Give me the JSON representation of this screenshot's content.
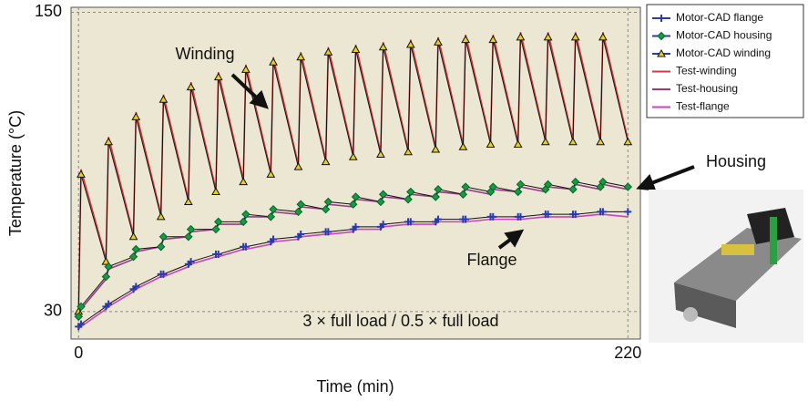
{
  "chart_data": {
    "type": "line",
    "x": [
      0,
      1,
      11,
      12,
      22,
      23,
      33,
      34,
      44,
      45,
      55,
      56,
      66,
      67,
      77,
      78,
      88,
      89,
      99,
      100,
      110,
      111,
      121,
      122,
      132,
      133,
      143,
      144,
      154,
      155,
      165,
      166,
      176,
      177,
      187,
      188,
      198,
      199,
      209,
      210,
      220
    ],
    "xlim": [
      -3,
      225
    ],
    "xticks": [
      0,
      220
    ],
    "ylim": [
      19,
      152
    ],
    "yticks": [
      30,
      150
    ],
    "xlabel": "Time (min)",
    "ylabel": "Temperature (°C)",
    "grid": true,
    "legend": "upper right",
    "annotations": [
      "Winding",
      "Housing",
      "Flange",
      "3 × full load / 0.5 × full load"
    ],
    "series": [
      {
        "name": "Motor-CAD flange",
        "color": "#2a3ab0",
        "marker": "plus",
        "values": [
          24,
          25,
          32,
          33,
          39,
          40,
          45,
          45,
          49,
          50,
          53,
          53,
          56,
          56,
          58,
          59,
          60,
          61,
          62,
          62,
          63,
          64,
          64,
          65,
          66,
          66,
          66,
          67,
          67,
          67,
          68,
          68,
          68,
          68,
          69,
          69,
          69,
          69,
          70,
          70,
          70
        ]
      },
      {
        "name": "Motor-CAD housing",
        "color": "#1a9a3a",
        "marker": "diamond",
        "values": [
          28,
          32,
          44,
          48,
          52,
          55,
          56,
          60,
          60,
          63,
          63,
          66,
          66,
          69,
          68,
          71,
          70,
          73,
          71,
          74,
          73,
          76,
          74,
          77,
          75,
          78,
          76,
          79,
          77,
          80,
          78,
          80,
          78,
          81,
          79,
          81,
          79,
          82,
          80,
          82,
          80
        ]
      },
      {
        "name": "Motor-CAD winding",
        "color": "#e8d020",
        "marker": "triangle",
        "values": [
          30,
          85,
          50,
          98,
          60,
          108,
          68,
          115,
          74,
          120,
          78,
          124,
          82,
          127,
          85,
          130,
          88,
          132,
          90,
          134,
          92,
          135,
          93,
          136,
          94,
          137,
          95,
          138,
          96,
          139,
          97,
          139,
          97,
          140,
          98,
          140,
          98,
          140,
          98,
          140,
          98
        ]
      },
      {
        "name": "Test-winding",
        "color": "#d83838",
        "values": [
          30,
          87,
          51,
          100,
          61,
          110,
          69,
          117,
          75,
          122,
          79,
          126,
          83,
          129,
          86,
          132,
          89,
          134,
          91,
          136,
          93,
          137,
          94,
          138,
          95,
          139,
          96,
          140,
          97,
          141,
          98,
          141,
          98,
          142,
          99,
          142,
          99,
          142,
          99,
          142,
          99
        ]
      },
      {
        "name": "Test-housing",
        "color": "#9a3a8a",
        "values": [
          28,
          31,
          43,
          47,
          51,
          54,
          56,
          59,
          60,
          62,
          63,
          65,
          65,
          68,
          68,
          70,
          69,
          72,
          71,
          73,
          72,
          75,
          74,
          76,
          75,
          77,
          76,
          78,
          77,
          79,
          77,
          79,
          78,
          80,
          78,
          80,
          79,
          81,
          79,
          81,
          79
        ]
      },
      {
        "name": "Test-flange",
        "color": "#d040c0",
        "values": [
          23,
          24,
          31,
          32,
          38,
          39,
          44,
          44,
          48,
          49,
          52,
          52,
          55,
          55,
          57,
          58,
          59,
          60,
          61,
          61,
          62,
          63,
          63,
          64,
          65,
          65,
          65,
          66,
          66,
          66,
          67,
          67,
          67,
          67,
          68,
          68,
          68,
          68,
          69,
          69,
          68
        ]
      }
    ]
  }
}
